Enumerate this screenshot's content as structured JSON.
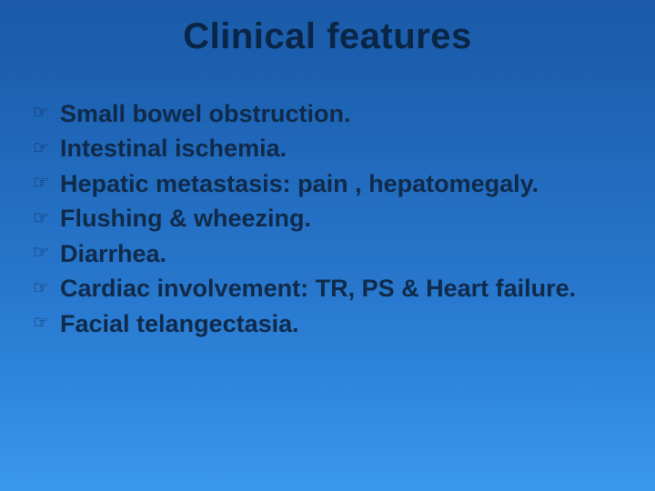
{
  "slide": {
    "title": "Clinical features",
    "title_fontsize": 40,
    "title_color": "#0a2545",
    "bullet_icon": "☞",
    "bullet_fontsize": 27,
    "bullet_color": "#102a4a",
    "background_gradient": {
      "top": "#1a5aa8",
      "bottom": "#3a98ee"
    },
    "bullets": [
      {
        "text": "Small bowel obstruction."
      },
      {
        "text": "Intestinal ischemia."
      },
      {
        "text": "Hepatic metastasis: pain , hepatomegaly."
      },
      {
        "text": "Flushing & wheezing."
      },
      {
        "text": "Diarrhea."
      },
      {
        "text": "Cardiac involvement: TR, PS & Heart failure."
      },
      {
        "text": "Facial telangectasia."
      }
    ]
  }
}
